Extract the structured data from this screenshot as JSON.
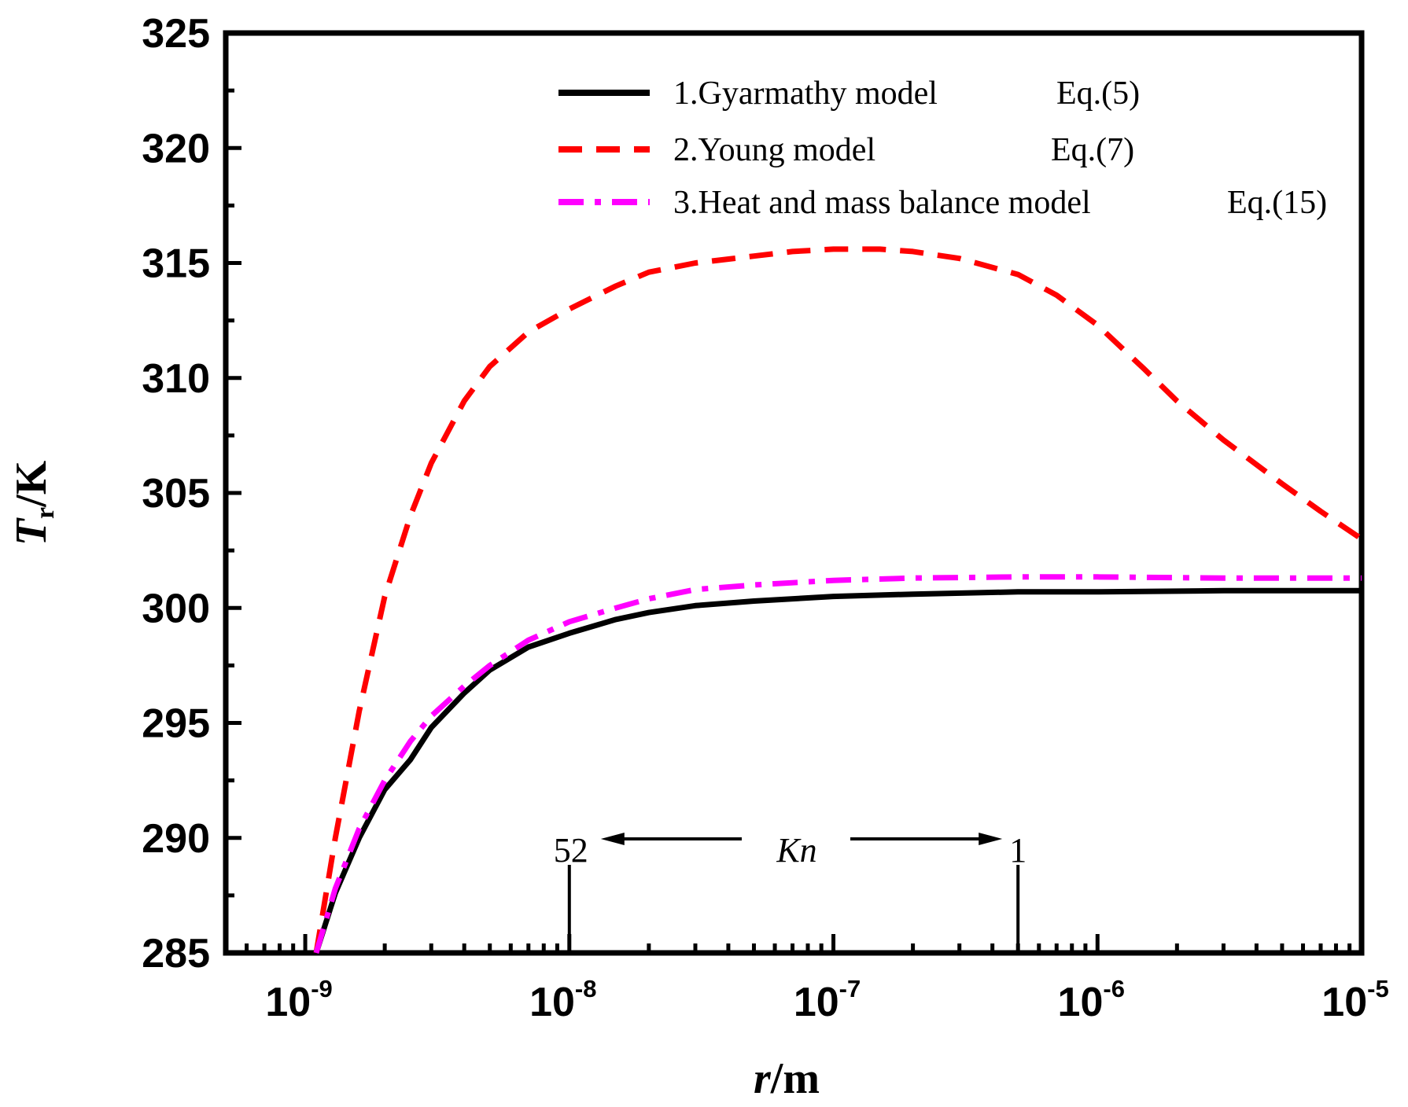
{
  "chart_data": {
    "type": "line",
    "title": "",
    "xlabel": {
      "var": "r",
      "unit": "/m"
    },
    "ylabel": {
      "var": "T",
      "sub": "r",
      "unit": "/K"
    },
    "xscale": "log",
    "xlim": [
      5e-10,
      1e-05
    ],
    "ylim": [
      285,
      325
    ],
    "y_ticks": [
      285,
      290,
      295,
      300,
      305,
      310,
      315,
      320,
      325
    ],
    "x_ticks": [
      {
        "value": 1e-09,
        "base": "10",
        "exp": "-9"
      },
      {
        "value": 1e-08,
        "base": "10",
        "exp": "-8"
      },
      {
        "value": 1e-07,
        "base": "10",
        "exp": "-7"
      },
      {
        "value": 1e-06,
        "base": "10",
        "exp": "-6"
      },
      {
        "value": 1e-05,
        "base": "10",
        "exp": "-5"
      }
    ],
    "legend_position": "top-right",
    "series": [
      {
        "name": "1.Gyarmathy model",
        "equation": "Eq.(5)",
        "color": "#000000",
        "style": "solid",
        "x": [
          1.1e-09,
          1.3e-09,
          1.6e-09,
          2e-09,
          2.5e-09,
          3e-09,
          4e-09,
          5e-09,
          7e-09,
          1e-08,
          1.5e-08,
          2e-08,
          3e-08,
          5e-08,
          1e-07,
          2e-07,
          5e-07,
          1e-06,
          3e-06,
          1e-05
        ],
        "y": [
          285.0,
          287.6,
          290.0,
          292.1,
          293.4,
          294.8,
          296.3,
          297.3,
          298.3,
          298.9,
          299.5,
          299.8,
          300.1,
          300.3,
          300.5,
          300.6,
          300.7,
          300.7,
          300.75,
          300.75
        ]
      },
      {
        "name": "2.Young model",
        "equation": "Eq.(7)",
        "color": "#ff0000",
        "style": "dashed",
        "x": [
          1.1e-09,
          1.3e-09,
          1.6e-09,
          2e-09,
          2.5e-09,
          3e-09,
          4e-09,
          5e-09,
          7e-09,
          1e-08,
          1.5e-08,
          2e-08,
          3e-08,
          5e-08,
          7e-08,
          1e-07,
          1.5e-07,
          2e-07,
          3e-07,
          5e-07,
          7e-07,
          1e-06,
          1.5e-06,
          2e-06,
          3e-06,
          5e-06,
          7e-06,
          1e-05
        ],
        "y": [
          285.0,
          290.0,
          295.5,
          300.5,
          304.0,
          306.3,
          309.0,
          310.5,
          312.0,
          313.0,
          314.0,
          314.6,
          315.0,
          315.3,
          315.5,
          315.6,
          315.6,
          315.5,
          315.2,
          314.5,
          313.6,
          312.3,
          310.4,
          309.0,
          307.3,
          305.4,
          304.2,
          303.0
        ]
      },
      {
        "name": "3.Heat and mass balance model",
        "equation": "Eq.(15)",
        "color": "#ff00ff",
        "style": "dash-dot",
        "x": [
          1.1e-09,
          1.3e-09,
          1.6e-09,
          2e-09,
          2.5e-09,
          3e-09,
          4e-09,
          5e-09,
          7e-09,
          1e-08,
          1.5e-08,
          2e-08,
          3e-08,
          5e-08,
          1e-07,
          2e-07,
          5e-07,
          1e-06,
          3e-06,
          1e-05
        ],
        "y": [
          285.0,
          287.8,
          290.4,
          292.5,
          294.2,
          295.3,
          296.6,
          297.5,
          298.6,
          299.4,
          300.0,
          300.4,
          300.8,
          301.0,
          301.2,
          301.3,
          301.35,
          301.35,
          301.3,
          301.3
        ]
      }
    ],
    "annotations": {
      "kn_label": "Kn",
      "left_value": "52",
      "right_value": "1",
      "left_x": 1e-08,
      "right_x": 5e-07
    }
  }
}
